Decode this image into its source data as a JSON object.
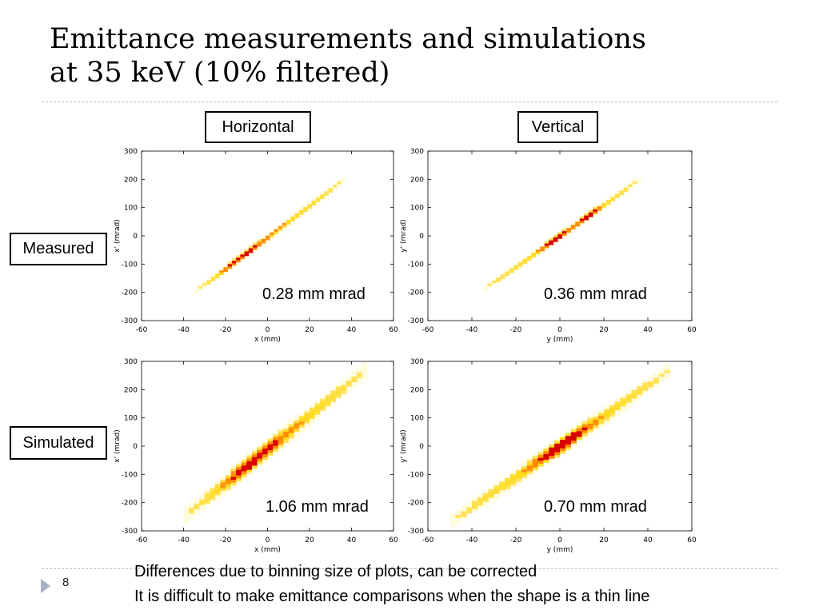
{
  "slide": {
    "title_line1": "Emittance measurements and simulations",
    "title_line2": "at 35 keV (10% filtered)",
    "page_number": "8",
    "notes": [
      "Differences due to binning size of plots, can be corrected",
      "It is difficult to make emittance comparisons when the shape is a thin line"
    ]
  },
  "labels": {
    "col_horizontal": "Horizontal",
    "col_vertical": "Vertical",
    "row_measured": "Measured",
    "row_simulated": "Simulated"
  },
  "colors": {
    "low": "#fff9c4",
    "mid": "#ffd400",
    "high": "#ff8c00",
    "peak": "#d80000",
    "separator": "#b7bcc6",
    "bullet": "#a7b3c4"
  },
  "chart_data": [
    {
      "type": "heatmap",
      "xlabel": "x (mm)",
      "ylabel": "x' (mrad)",
      "xlim": [
        -60,
        60
      ],
      "ylim": [
        -300,
        300
      ],
      "xticks": [
        -60,
        -40,
        -20,
        0,
        20,
        40,
        60
      ],
      "yticks": [
        300,
        200,
        100,
        0,
        -100,
        -200,
        -300
      ],
      "annotation": "0.28 mm mrad",
      "slope": 5.6,
      "intercept": -5,
      "x_range": [
        -35,
        35
      ],
      "spread": 7,
      "peak_x": [
        -18,
        -10
      ],
      "style": "thin"
    },
    {
      "type": "heatmap",
      "xlabel": "y (mm)",
      "ylabel": "y' (mrad)",
      "xlim": [
        -60,
        60
      ],
      "ylim": [
        -300,
        300
      ],
      "xticks": [
        -60,
        -40,
        -20,
        0,
        20,
        40,
        60
      ],
      "yticks": [
        300,
        200,
        100,
        0,
        -100,
        -200,
        -300
      ],
      "annotation": "0.36 mm mrad",
      "slope": 5.5,
      "intercept": 0,
      "x_range": [
        -35,
        35
      ],
      "spread": 7,
      "peak_x": [
        -4,
        12
      ],
      "style": "thin"
    },
    {
      "type": "heatmap",
      "xlabel": "x (mm)",
      "ylabel": "x' (mrad)",
      "xlim": [
        -60,
        60
      ],
      "ylim": [
        -300,
        300
      ],
      "xticks": [
        -60,
        -40,
        -20,
        0,
        20,
        40,
        60
      ],
      "yticks": [
        300,
        200,
        100,
        0,
        -100,
        -200,
        -300
      ],
      "annotation": "1.06 mm mrad",
      "slope": 6.0,
      "intercept": -10,
      "x_range": [
        -40,
        45
      ],
      "spread": 18,
      "peak_x": [
        -10
      ],
      "style": "thick"
    },
    {
      "type": "heatmap",
      "xlabel": "y (mm)",
      "ylabel": "y' (mrad)",
      "xlim": [
        -60,
        60
      ],
      "ylim": [
        -300,
        300
      ],
      "xticks": [
        -60,
        -40,
        -20,
        0,
        20,
        40,
        60
      ],
      "yticks": [
        300,
        200,
        100,
        0,
        -100,
        -200,
        -300
      ],
      "annotation": "0.70 mm mrad",
      "slope": 5.4,
      "intercept": 0,
      "x_range": [
        -50,
        48
      ],
      "spread": 16,
      "peak_x": [
        0
      ],
      "style": "thick"
    }
  ]
}
